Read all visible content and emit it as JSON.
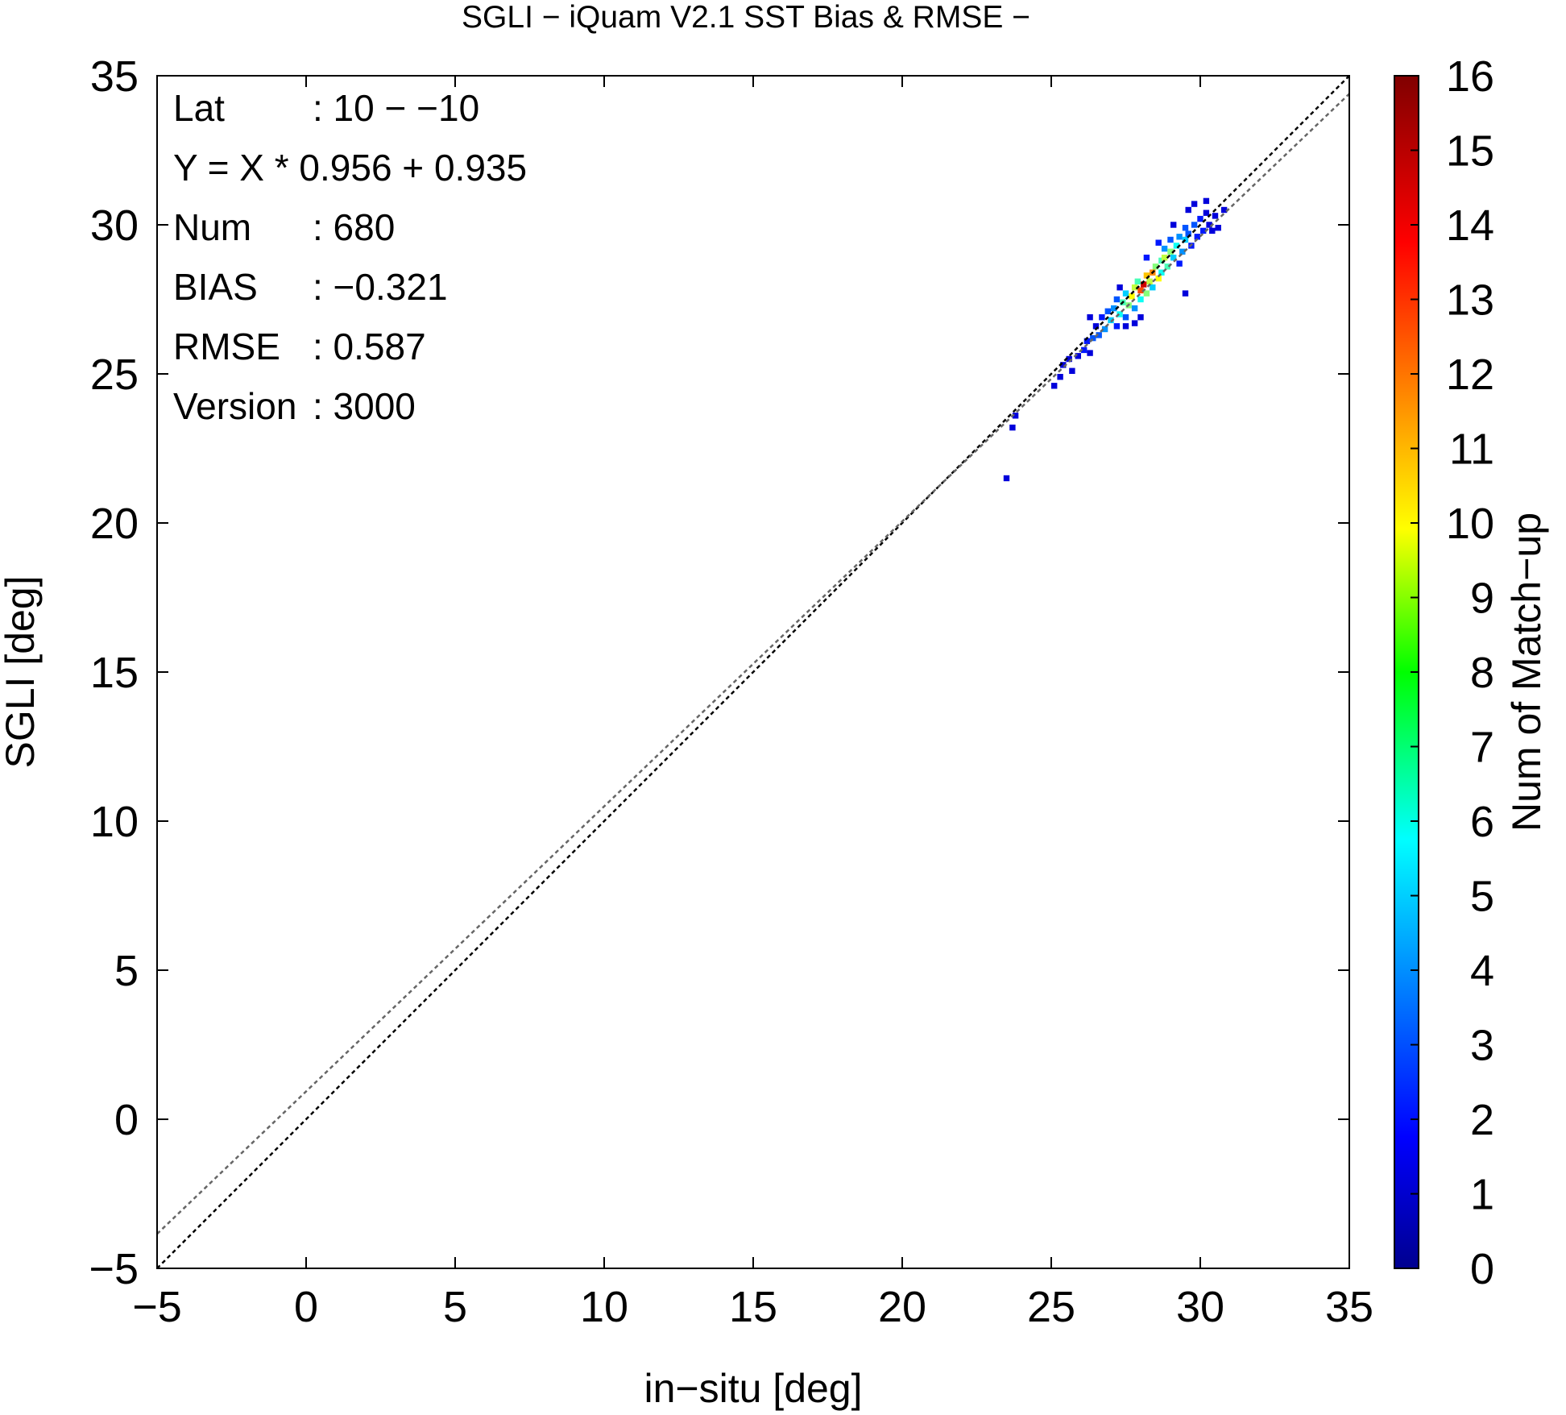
{
  "chart_data": {
    "type": "heatmap",
    "title": "SGLI − iQuam V2.1 SST Bias & RMSE  −",
    "xlabel": "in−situ [deg]",
    "ylabel": "SGLI [deg]",
    "xlim": [
      -5,
      35
    ],
    "ylim": [
      -5,
      35
    ],
    "x_ticks": [
      "−5",
      "0",
      "5",
      "10",
      "15",
      "20",
      "25",
      "30",
      "35"
    ],
    "y_ticks": [
      "−5",
      "0",
      "5",
      "10",
      "15",
      "20",
      "25",
      "30",
      "35"
    ],
    "stats": [
      {
        "label": "Lat",
        "value": ": 10 − −10"
      },
      {
        "label": "Y = X * 0.956 + 0.935",
        "value": ""
      },
      {
        "label": "Num",
        "value": ": 680"
      },
      {
        "label": "BIAS",
        "value": ": −0.321"
      },
      {
        "label": "RMSE",
        "value": ": 0.587"
      },
      {
        "label": "Version",
        "value": ": 3000"
      }
    ],
    "reference_lines": [
      {
        "kind": "one-to-one",
        "slope": 1.0,
        "intercept": 0.0,
        "color": "#000000",
        "style": "dotted"
      },
      {
        "kind": "regression",
        "slope": 0.956,
        "intercept": 0.935,
        "color": "#666666",
        "style": "dotted"
      }
    ],
    "colorbar": {
      "label": "Num of Match−up",
      "min": 0,
      "max": 16,
      "ticks": [
        "0",
        "1",
        "2",
        "3",
        "4",
        "5",
        "6",
        "7",
        "8",
        "9",
        "10",
        "11",
        "12",
        "13",
        "14",
        "15",
        "16"
      ],
      "colormap": "jet"
    },
    "bin_size": 0.2,
    "cells": [
      [
        23.5,
        21.5,
        1
      ],
      [
        23.7,
        23.2,
        1
      ],
      [
        23.8,
        23.6,
        1
      ],
      [
        25.1,
        24.6,
        1
      ],
      [
        25.3,
        24.9,
        1
      ],
      [
        25.4,
        25.3,
        1
      ],
      [
        25.6,
        25.5,
        1
      ],
      [
        25.7,
        25.1,
        1
      ],
      [
        25.9,
        25.6,
        1
      ],
      [
        26.1,
        25.8,
        2
      ],
      [
        26.2,
        26.1,
        2
      ],
      [
        26.3,
        25.7,
        1
      ],
      [
        26.4,
        26.2,
        3
      ],
      [
        26.5,
        26.6,
        1
      ],
      [
        26.6,
        26.3,
        3
      ],
      [
        26.7,
        26.9,
        2
      ],
      [
        26.8,
        26.5,
        4
      ],
      [
        26.9,
        27.1,
        3
      ],
      [
        27.0,
        26.8,
        5
      ],
      [
        27.1,
        27.2,
        4
      ],
      [
        27.2,
        26.6,
        2
      ],
      [
        27.2,
        27.5,
        3
      ],
      [
        27.3,
        27.0,
        6
      ],
      [
        27.4,
        27.4,
        7
      ],
      [
        27.5,
        27.7,
        5
      ],
      [
        27.5,
        26.9,
        3
      ],
      [
        27.6,
        27.3,
        8
      ],
      [
        27.7,
        27.6,
        10
      ],
      [
        27.8,
        27.9,
        9
      ],
      [
        27.8,
        27.2,
        4
      ],
      [
        27.9,
        28.1,
        7
      ],
      [
        28.0,
        27.8,
        13
      ],
      [
        28.0,
        27.5,
        6
      ],
      [
        28.1,
        28.0,
        15
      ],
      [
        28.2,
        28.3,
        11
      ],
      [
        28.2,
        27.7,
        8
      ],
      [
        28.3,
        28.1,
        9
      ],
      [
        28.4,
        28.4,
        12
      ],
      [
        28.4,
        27.9,
        5
      ],
      [
        28.5,
        28.6,
        8
      ],
      [
        28.6,
        28.2,
        10
      ],
      [
        28.7,
        28.8,
        7
      ],
      [
        28.7,
        28.4,
        6
      ],
      [
        28.8,
        28.9,
        9
      ],
      [
        28.8,
        29.2,
        4
      ],
      [
        28.9,
        28.6,
        7
      ],
      [
        29.0,
        29.1,
        8
      ],
      [
        29.0,
        29.5,
        3
      ],
      [
        29.1,
        28.9,
        5
      ],
      [
        29.2,
        29.3,
        6
      ],
      [
        29.3,
        29.6,
        4
      ],
      [
        29.3,
        28.7,
        2
      ],
      [
        29.4,
        29.1,
        4
      ],
      [
        29.5,
        29.5,
        5
      ],
      [
        29.5,
        29.9,
        3
      ],
      [
        29.6,
        29.7,
        3
      ],
      [
        29.7,
        29.3,
        2
      ],
      [
        29.8,
        30.0,
        3
      ],
      [
        29.9,
        29.6,
        2
      ],
      [
        30.0,
        30.2,
        2
      ],
      [
        30.1,
        29.8,
        2
      ],
      [
        30.2,
        30.4,
        1
      ],
      [
        30.3,
        30.0,
        1
      ],
      [
        30.4,
        29.8,
        1
      ],
      [
        30.5,
        30.3,
        1
      ],
      [
        30.6,
        29.9,
        1
      ],
      [
        30.8,
        30.5,
        1
      ],
      [
        29.5,
        27.7,
        1
      ],
      [
        27.5,
        26.6,
        1
      ],
      [
        26.3,
        26.9,
        1
      ],
      [
        27.3,
        27.9,
        1
      ],
      [
        28.2,
        28.9,
        2
      ],
      [
        28.6,
        29.4,
        2
      ],
      [
        29.1,
        30.0,
        1
      ],
      [
        29.6,
        30.5,
        1
      ],
      [
        28.0,
        26.9,
        1
      ],
      [
        27.8,
        26.7,
        1
      ],
      [
        29.8,
        30.7,
        1
      ],
      [
        30.2,
        30.8,
        1
      ]
    ]
  }
}
